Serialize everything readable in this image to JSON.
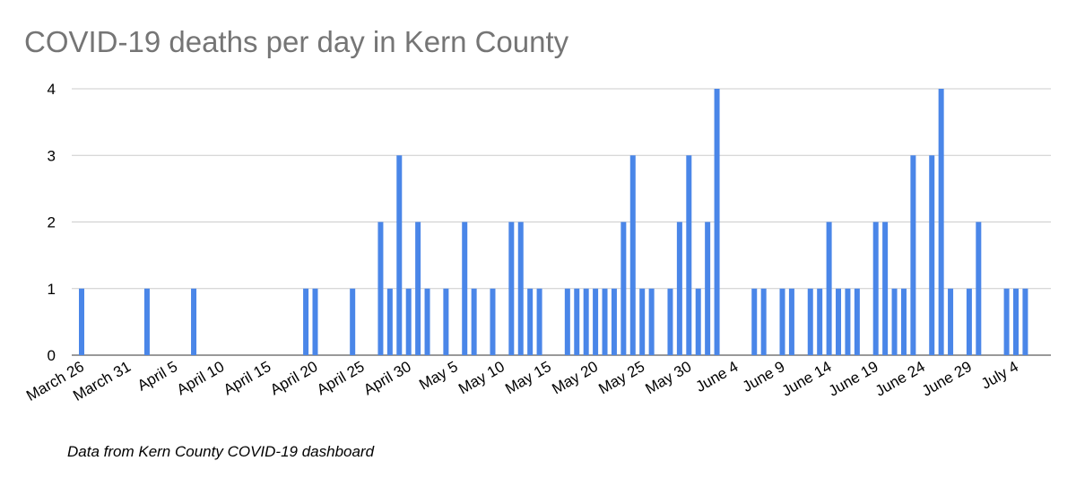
{
  "chart_data": {
    "type": "bar",
    "title": "COVID-19 deaths per day in Kern County",
    "note": "Data from Kern County COVID-19 dashboard",
    "categories": [
      "March 26",
      null,
      null,
      null,
      null,
      "March 31",
      null,
      null,
      null,
      null,
      "April 5",
      null,
      null,
      null,
      null,
      "April 10",
      null,
      null,
      null,
      null,
      "April 15",
      null,
      null,
      null,
      null,
      "April 20",
      null,
      null,
      null,
      null,
      "April 25",
      null,
      null,
      null,
      null,
      "April 30",
      null,
      null,
      null,
      null,
      "May 5",
      null,
      null,
      null,
      null,
      "May 10",
      null,
      null,
      null,
      null,
      "May 15",
      null,
      null,
      null,
      null,
      "May 20",
      null,
      null,
      null,
      null,
      "May 25",
      null,
      null,
      null,
      null,
      "May 30",
      null,
      null,
      null,
      null,
      "June 4",
      null,
      null,
      null,
      null,
      "June 9",
      null,
      null,
      null,
      null,
      "June 14",
      null,
      null,
      null,
      null,
      "June 19",
      null,
      null,
      null,
      null,
      "June 24",
      null,
      null,
      null,
      null,
      "June 29",
      null,
      null,
      null,
      null,
      "July 4",
      null
    ],
    "values": [
      1,
      0,
      0,
      0,
      0,
      0,
      0,
      1,
      0,
      0,
      0,
      0,
      1,
      0,
      0,
      0,
      0,
      0,
      0,
      0,
      0,
      0,
      0,
      0,
      1,
      1,
      0,
      0,
      0,
      1,
      0,
      0,
      2,
      1,
      3,
      1,
      2,
      1,
      0,
      1,
      0,
      2,
      1,
      0,
      1,
      0,
      2,
      2,
      1,
      1,
      0,
      0,
      1,
      1,
      1,
      1,
      1,
      1,
      2,
      3,
      1,
      1,
      0,
      1,
      2,
      3,
      1,
      2,
      4,
      0,
      0,
      0,
      1,
      1,
      0,
      1,
      1,
      0,
      1,
      1,
      2,
      1,
      1,
      1,
      0,
      2,
      2,
      1,
      1,
      3,
      0,
      3,
      4,
      1,
      0,
      1,
      2,
      0,
      0,
      1,
      1,
      1
    ],
    "color": "#4a86e8",
    "ylim": [
      0,
      4
    ],
    "yticks": [
      0,
      1,
      2,
      3,
      4
    ],
    "grid": true
  }
}
